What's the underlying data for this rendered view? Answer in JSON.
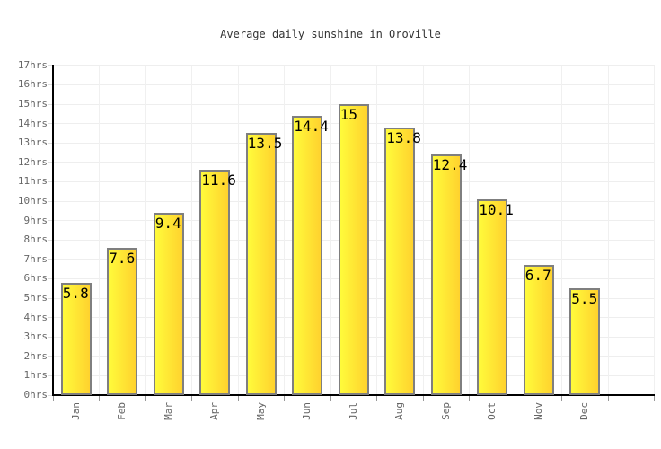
{
  "title": "Average daily sunshine in Oroville",
  "chart_data": {
    "type": "bar",
    "title": "Average daily sunshine in Oroville",
    "categories": [
      "Jan",
      "Feb",
      "Mar",
      "Apr",
      "May",
      "Jun",
      "Jul",
      "Aug",
      "Sep",
      "Oct",
      "Nov",
      "Dec"
    ],
    "values": [
      5.8,
      7.6,
      9.4,
      11.6,
      13.5,
      14.4,
      15.0,
      13.8,
      12.4,
      10.1,
      6.7,
      5.5
    ],
    "unit": "hrs",
    "xlabel": "",
    "ylabel": "",
    "ylim": [
      0,
      17
    ],
    "ytick_step": 1,
    "y_tick_labels": [
      "0hrs",
      "1hrs",
      "2hrs",
      "3hrs",
      "4hrs",
      "5hrs",
      "6hrs",
      "7hrs",
      "8hrs",
      "9hrs",
      "10hrs",
      "11hrs",
      "12hrs",
      "13hrs",
      "14hrs",
      "15hrs",
      "16hrs",
      "17hrs"
    ],
    "grid": true,
    "legend": "none",
    "colors": {
      "bar_gradient_left": "#fffb3b",
      "bar_gradient_right": "#ffd22e",
      "bar_border": "#7f7f7f",
      "grid": "#eeeeee",
      "axis": "#000000",
      "label": "#666666",
      "title": "#333333",
      "background": "#ffffff"
    }
  }
}
